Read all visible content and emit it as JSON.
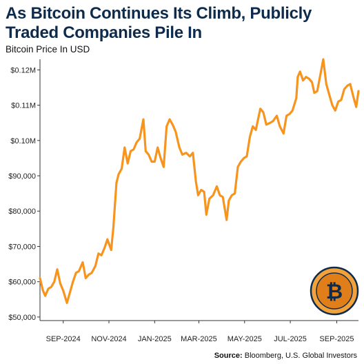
{
  "header": {
    "title": "As Bitcoin Continues Its Climb, Publicly Traded Companies Pile In"
  },
  "footer": {
    "source_label": "Source:",
    "source_text": "Bloomberg, U.S. Global Investors"
  },
  "badge": {
    "icon": "bitcoin-coin-icon",
    "glyph": "₿"
  },
  "colors": {
    "line": "#f7941d",
    "title": "#0e2b4c",
    "coin_outer": "#f2a23a",
    "coin_inner": "#e07f1a"
  },
  "chart_data": {
    "type": "line",
    "title": "As Bitcoin Continues Its Climb, Publicly Traded Companies Pile In",
    "ylabel": "Bitcoin Price In USD",
    "xlabel": "",
    "x_range": [
      "2024-08-01",
      "2025-09-30"
    ],
    "ylim": [
      49000,
      123000
    ],
    "grid": false,
    "legend": "none",
    "x_ticks": [
      {
        "date": "2024-09-01",
        "label": "SEP-2024"
      },
      {
        "date": "2024-11-01",
        "label": "NOV-2024"
      },
      {
        "date": "2025-01-01",
        "label": "JAN-2025"
      },
      {
        "date": "2025-03-01",
        "label": "MAR-2025"
      },
      {
        "date": "2025-05-01",
        "label": "MAY-2025"
      },
      {
        "date": "2025-07-01",
        "label": "JUL-2025"
      },
      {
        "date": "2025-09-01",
        "label": "SEP-2025"
      }
    ],
    "y_ticks": [
      {
        "value": 50000,
        "label": "$50,000"
      },
      {
        "value": 60000,
        "label": "$60,000"
      },
      {
        "value": 70000,
        "label": "$70,000"
      },
      {
        "value": 80000,
        "label": "$80,000"
      },
      {
        "value": 90000,
        "label": "$90,000"
      },
      {
        "value": 100000,
        "label": "$0.10M"
      },
      {
        "value": 110000,
        "label": "$0.11M"
      },
      {
        "value": 120000,
        "label": "$0.12M"
      }
    ],
    "series": [
      {
        "x": [
          "2024-08-01",
          "2024-08-05",
          "2024-08-08",
          "2024-08-12",
          "2024-08-16",
          "2024-08-20",
          "2024-08-24",
          "2024-08-28",
          "2024-09-01",
          "2024-09-06",
          "2024-09-10",
          "2024-09-14",
          "2024-09-18",
          "2024-09-22",
          "2024-09-27",
          "2024-10-01",
          "2024-10-05",
          "2024-10-09",
          "2024-10-14",
          "2024-10-18",
          "2024-10-22",
          "2024-10-26",
          "2024-10-30",
          "2024-11-04",
          "2024-11-07",
          "2024-11-11",
          "2024-11-14",
          "2024-11-18",
          "2024-11-22",
          "2024-11-26",
          "2024-11-30",
          "2024-12-04",
          "2024-12-08",
          "2024-12-12",
          "2024-12-17",
          "2024-12-20",
          "2024-12-24",
          "2024-12-28",
          "2025-01-01",
          "2025-01-05",
          "2025-01-09",
          "2025-01-13",
          "2025-01-17",
          "2025-01-21",
          "2025-01-25",
          "2025-01-29",
          "2025-02-03",
          "2025-02-07",
          "2025-02-12",
          "2025-02-17",
          "2025-02-21",
          "2025-02-25",
          "2025-02-28",
          "2025-03-04",
          "2025-03-08",
          "2025-03-11",
          "2025-03-15",
          "2025-03-20",
          "2025-03-25",
          "2025-03-29",
          "2025-04-02",
          "2025-04-07",
          "2025-04-10",
          "2025-04-14",
          "2025-04-18",
          "2025-04-22",
          "2025-04-26",
          "2025-04-30",
          "2025-05-04",
          "2025-05-08",
          "2025-05-12",
          "2025-05-16",
          "2025-05-22",
          "2025-05-26",
          "2025-05-30",
          "2025-06-04",
          "2025-06-08",
          "2025-06-13",
          "2025-06-17",
          "2025-06-22",
          "2025-06-26",
          "2025-06-30",
          "2025-07-04",
          "2025-07-09",
          "2025-07-11",
          "2025-07-14",
          "2025-07-18",
          "2025-07-22",
          "2025-07-26",
          "2025-07-30",
          "2025-08-02",
          "2025-08-06",
          "2025-08-10",
          "2025-08-14",
          "2025-08-18",
          "2025-08-22",
          "2025-08-26",
          "2025-08-30",
          "2025-09-03",
          "2025-09-07",
          "2025-09-11",
          "2025-09-15",
          "2025-09-19",
          "2025-09-23",
          "2025-09-27",
          "2025-09-30"
        ],
        "values": [
          61000,
          57500,
          56000,
          58000,
          58500,
          60000,
          63500,
          59500,
          57500,
          54000,
          57000,
          60000,
          62500,
          63000,
          65500,
          61000,
          62000,
          62500,
          64500,
          68000,
          67500,
          69500,
          72000,
          69000,
          75500,
          88000,
          90500,
          92000,
          98000,
          93500,
          97000,
          97500,
          99500,
          100500,
          106000,
          97000,
          96000,
          94000,
          94000,
          98000,
          95000,
          92500,
          104000,
          106000,
          104500,
          102500,
          98000,
          96000,
          96500,
          95500,
          96500,
          88500,
          84500,
          86000,
          85500,
          79000,
          83500,
          84500,
          87000,
          84500,
          84000,
          77500,
          83000,
          84500,
          85000,
          92500,
          94000,
          95000,
          95500,
          101000,
          104000,
          103000,
          109000,
          108000,
          104500,
          105000,
          105500,
          107000,
          104000,
          102000,
          107000,
          107500,
          108500,
          112000,
          118000,
          119500,
          117000,
          118000,
          117500,
          116500,
          113500,
          114000,
          118500,
          123000,
          116000,
          113000,
          110000,
          108500,
          111000,
          111500,
          114500,
          115500,
          116000,
          112500,
          109500,
          114000
        ]
      }
    ]
  }
}
